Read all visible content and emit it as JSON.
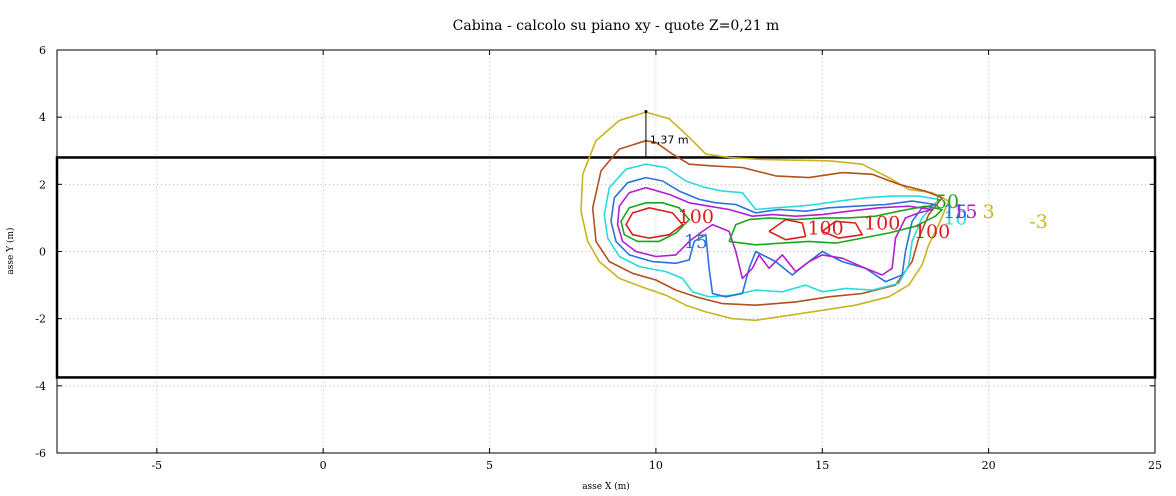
{
  "chart_data": {
    "type": "contour",
    "title": "Cabina  -  calcolo su piano xy  -  quote Z=0,21 m",
    "xlabel": "asse X (m)",
    "ylabel": "asse Y (m)",
    "xlim": [
      -8,
      25
    ],
    "ylim": [
      -6,
      6
    ],
    "xticks": [
      -5,
      0,
      5,
      10,
      15,
      20,
      25
    ],
    "yticks": [
      -6,
      -4,
      -2,
      0,
      2,
      4,
      6
    ],
    "grid": true,
    "colors": {
      "c3": "#c8b41e",
      "c5": "#b4501e",
      "c10": "#28dcdc",
      "c15": "#2a73dc",
      "c20": "#b41ed2",
      "c50": "#1ea51e",
      "c100": "#dc1e1e"
    },
    "cabin_rect": {
      "x": [
        -8,
        25
      ],
      "y": [
        -3.75,
        2.8
      ]
    },
    "annotation": {
      "text": "1,37 m",
      "x": 9.7,
      "y_from": 2.8,
      "y_to": 4.17
    },
    "contours": [
      {
        "level": "3",
        "color": "#c8b41e",
        "points": [
          [
            9.7,
            4.15
          ],
          [
            8.9,
            3.9
          ],
          [
            8.2,
            3.3
          ],
          [
            7.8,
            2.3
          ],
          [
            7.75,
            1.2
          ],
          [
            7.95,
            0.3
          ],
          [
            8.3,
            -0.3
          ],
          [
            8.9,
            -0.8
          ],
          [
            9.7,
            -1.1
          ],
          [
            10.3,
            -1.3
          ],
          [
            10.9,
            -1.6
          ],
          [
            11.5,
            -1.8
          ],
          [
            12.3,
            -2.0
          ],
          [
            13.0,
            -2.05
          ],
          [
            14.0,
            -1.9
          ],
          [
            15.0,
            -1.75
          ],
          [
            16.0,
            -1.6
          ],
          [
            17.0,
            -1.35
          ],
          [
            17.6,
            -1.0
          ],
          [
            18.0,
            -0.4
          ],
          [
            18.2,
            0.2
          ],
          [
            18.5,
            0.8
          ],
          [
            18.8,
            1.5
          ],
          [
            18.3,
            1.75
          ],
          [
            17.6,
            1.85
          ],
          [
            17.0,
            2.2
          ],
          [
            16.2,
            2.6
          ],
          [
            15.2,
            2.7
          ],
          [
            14.2,
            2.72
          ],
          [
            13.2,
            2.74
          ],
          [
            12.2,
            2.8
          ],
          [
            11.5,
            2.9
          ],
          [
            11.0,
            3.4
          ],
          [
            10.4,
            3.95
          ],
          [
            9.7,
            4.15
          ]
        ],
        "labels": [
          {
            "text": "3",
            "x": 20.0,
            "y": 1.0
          }
        ]
      },
      {
        "level": "3b",
        "color": "#c8b41e",
        "points": [],
        "labels": [
          {
            "text": "-3",
            "x": 21.5,
            "y": 0.7
          }
        ]
      },
      {
        "level": "5",
        "color": "#b4501e",
        "points": [
          [
            9.7,
            3.3
          ],
          [
            8.9,
            3.05
          ],
          [
            8.35,
            2.4
          ],
          [
            8.1,
            1.3
          ],
          [
            8.2,
            0.3
          ],
          [
            8.6,
            -0.3
          ],
          [
            9.3,
            -0.65
          ],
          [
            10.0,
            -0.85
          ],
          [
            10.6,
            -1.15
          ],
          [
            11.2,
            -1.35
          ],
          [
            12.0,
            -1.55
          ],
          [
            13.0,
            -1.6
          ],
          [
            14.2,
            -1.5
          ],
          [
            15.2,
            -1.35
          ],
          [
            16.2,
            -1.25
          ],
          [
            17.2,
            -1.0
          ],
          [
            17.7,
            -0.3
          ],
          [
            17.9,
            0.4
          ],
          [
            18.2,
            1.1
          ],
          [
            18.6,
            1.6
          ],
          [
            18.1,
            1.8
          ],
          [
            17.3,
            2.0
          ],
          [
            16.5,
            2.3
          ],
          [
            15.6,
            2.35
          ],
          [
            14.6,
            2.2
          ],
          [
            13.6,
            2.25
          ],
          [
            12.6,
            2.5
          ],
          [
            11.7,
            2.55
          ],
          [
            11.0,
            2.6
          ],
          [
            10.5,
            2.9
          ],
          [
            10.0,
            3.25
          ],
          [
            9.7,
            3.3
          ]
        ],
        "labels": []
      },
      {
        "level": "10",
        "color": "#28dcdc",
        "points": [
          [
            9.7,
            2.6
          ],
          [
            9.1,
            2.45
          ],
          [
            8.6,
            1.9
          ],
          [
            8.45,
            1.1
          ],
          [
            8.55,
            0.4
          ],
          [
            8.9,
            -0.15
          ],
          [
            9.5,
            -0.45
          ],
          [
            10.3,
            -0.6
          ],
          [
            10.8,
            -0.8
          ],
          [
            11.1,
            -1.2
          ],
          [
            11.6,
            -1.35
          ],
          [
            12.3,
            -1.3
          ],
          [
            13.0,
            -1.15
          ],
          [
            13.8,
            -1.2
          ],
          [
            14.5,
            -1.0
          ],
          [
            15.0,
            -1.2
          ],
          [
            15.7,
            -1.1
          ],
          [
            16.5,
            -1.15
          ],
          [
            17.3,
            -0.95
          ],
          [
            17.6,
            -0.4
          ],
          [
            17.7,
            0.3
          ],
          [
            18.0,
            1.0
          ],
          [
            18.5,
            1.55
          ],
          [
            17.9,
            1.65
          ],
          [
            17.1,
            1.65
          ],
          [
            16.3,
            1.6
          ],
          [
            15.5,
            1.5
          ],
          [
            14.8,
            1.4
          ],
          [
            14.3,
            1.35
          ],
          [
            13.6,
            1.3
          ],
          [
            13.0,
            1.25
          ],
          [
            12.6,
            1.75
          ],
          [
            12.0,
            1.8
          ],
          [
            11.5,
            1.9
          ],
          [
            10.9,
            2.1
          ],
          [
            10.3,
            2.5
          ],
          [
            9.7,
            2.6
          ]
        ],
        "labels": [
          {
            "text": "10",
            "x": 19.0,
            "y": 0.8
          }
        ]
      },
      {
        "level": "15",
        "color": "#2a73dc",
        "points": [
          [
            9.7,
            2.2
          ],
          [
            9.15,
            2.05
          ],
          [
            8.75,
            1.6
          ],
          [
            8.65,
            0.9
          ],
          [
            8.8,
            0.3
          ],
          [
            9.2,
            -0.1
          ],
          [
            9.9,
            -0.3
          ],
          [
            10.6,
            -0.35
          ],
          [
            11.0,
            -0.25
          ],
          [
            11.15,
            0.3
          ],
          [
            11.5,
            0.5
          ],
          [
            11.6,
            -0.5
          ],
          [
            11.7,
            -1.25
          ],
          [
            12.1,
            -1.35
          ],
          [
            12.6,
            -1.25
          ],
          [
            12.8,
            -0.5
          ],
          [
            13.0,
            0.0
          ],
          [
            13.6,
            -0.3
          ],
          [
            14.1,
            -0.7
          ],
          [
            14.6,
            -0.3
          ],
          [
            15.0,
            0.0
          ],
          [
            15.6,
            -0.3
          ],
          [
            16.3,
            -0.5
          ],
          [
            16.9,
            -0.9
          ],
          [
            17.4,
            -0.7
          ],
          [
            17.5,
            0.0
          ],
          [
            17.7,
            0.9
          ],
          [
            18.0,
            1.3
          ],
          [
            18.4,
            1.4
          ],
          [
            17.7,
            1.5
          ],
          [
            16.9,
            1.4
          ],
          [
            16.0,
            1.35
          ],
          [
            15.2,
            1.3
          ],
          [
            14.5,
            1.2
          ],
          [
            13.7,
            1.25
          ],
          [
            13.0,
            1.15
          ],
          [
            12.4,
            1.4
          ],
          [
            11.8,
            1.45
          ],
          [
            11.3,
            1.55
          ],
          [
            10.7,
            1.8
          ],
          [
            10.2,
            2.1
          ],
          [
            9.7,
            2.2
          ]
        ],
        "labels": [
          {
            "text": "15",
            "x": 19.0,
            "y": 1.0
          },
          {
            "text": "15",
            "x": 11.2,
            "y": 0.1
          }
        ]
      },
      {
        "level": "20",
        "color": "#b41ed2",
        "points": [
          [
            9.7,
            1.9
          ],
          [
            9.2,
            1.75
          ],
          [
            8.9,
            1.35
          ],
          [
            8.85,
            0.8
          ],
          [
            9.0,
            0.3
          ],
          [
            9.4,
            0.0
          ],
          [
            10.0,
            -0.15
          ],
          [
            10.6,
            -0.1
          ],
          [
            11.0,
            0.3
          ],
          [
            11.4,
            0.6
          ],
          [
            11.7,
            0.8
          ],
          [
            12.2,
            0.6
          ],
          [
            12.4,
            0.0
          ],
          [
            12.6,
            -0.8
          ],
          [
            12.9,
            -0.5
          ],
          [
            13.1,
            -0.1
          ],
          [
            13.4,
            -0.5
          ],
          [
            13.8,
            -0.1
          ],
          [
            14.2,
            -0.6
          ],
          [
            14.6,
            -0.3
          ],
          [
            15.0,
            -0.1
          ],
          [
            15.6,
            -0.2
          ],
          [
            16.3,
            -0.5
          ],
          [
            16.8,
            -0.7
          ],
          [
            17.1,
            -0.5
          ],
          [
            17.2,
            0.4
          ],
          [
            17.5,
            1.0
          ],
          [
            17.9,
            1.15
          ],
          [
            18.3,
            1.25
          ],
          [
            17.6,
            1.35
          ],
          [
            16.7,
            1.3
          ],
          [
            15.8,
            1.2
          ],
          [
            15.0,
            1.1
          ],
          [
            14.2,
            1.05
          ],
          [
            13.5,
            1.1
          ],
          [
            12.9,
            1.05
          ],
          [
            12.2,
            1.25
          ],
          [
            11.6,
            1.35
          ],
          [
            11.0,
            1.45
          ],
          [
            10.4,
            1.7
          ],
          [
            9.7,
            1.9
          ]
        ],
        "labels": [
          {
            "text": "15",
            "x": 19.3,
            "y": 1.0
          }
        ]
      },
      {
        "level": "50",
        "color": "#1ea51e",
        "points": [
          [
            9.7,
            1.45
          ],
          [
            9.2,
            1.3
          ],
          [
            8.95,
            0.9
          ],
          [
            9.05,
            0.5
          ],
          [
            9.45,
            0.3
          ],
          [
            10.1,
            0.3
          ],
          [
            10.6,
            0.55
          ],
          [
            11.0,
            0.95
          ],
          [
            10.7,
            1.3
          ],
          [
            10.2,
            1.45
          ],
          [
            9.7,
            1.45
          ]
        ],
        "labels": [
          {
            "text": "50",
            "x": 18.75,
            "y": 1.3
          }
        ]
      },
      {
        "level": "50b",
        "color": "#1ea51e",
        "points": [
          [
            12.2,
            0.3
          ],
          [
            13.0,
            0.2
          ],
          [
            13.8,
            0.25
          ],
          [
            14.6,
            0.3
          ],
          [
            15.4,
            0.25
          ],
          [
            16.2,
            0.4
          ],
          [
            17.0,
            0.55
          ],
          [
            17.8,
            0.75
          ],
          [
            18.4,
            1.05
          ],
          [
            18.6,
            1.25
          ],
          [
            18.1,
            1.35
          ],
          [
            17.3,
            1.2
          ],
          [
            16.6,
            1.05
          ],
          [
            15.8,
            1.0
          ],
          [
            15.0,
            1.0
          ],
          [
            14.2,
            0.95
          ],
          [
            13.4,
            1.0
          ],
          [
            12.8,
            0.95
          ],
          [
            12.4,
            0.8
          ],
          [
            12.2,
            0.3
          ]
        ],
        "labels": []
      },
      {
        "level": "100",
        "color": "#dc1e1e",
        "points": [
          [
            9.8,
            1.3
          ],
          [
            9.3,
            1.15
          ],
          [
            9.1,
            0.8
          ],
          [
            9.3,
            0.5
          ],
          [
            9.8,
            0.4
          ],
          [
            10.4,
            0.5
          ],
          [
            10.8,
            0.8
          ],
          [
            10.5,
            1.15
          ],
          [
            9.8,
            1.3
          ]
        ],
        "labels": [
          {
            "text": "100",
            "x": 11.2,
            "y": 0.85
          }
        ]
      },
      {
        "level": "100b",
        "color": "#dc1e1e",
        "points": [
          [
            13.4,
            0.6
          ],
          [
            13.9,
            0.35
          ],
          [
            14.5,
            0.45
          ],
          [
            14.4,
            0.85
          ],
          [
            13.9,
            0.95
          ],
          [
            13.4,
            0.6
          ]
        ],
        "labels": [
          {
            "text": "100",
            "x": 15.1,
            "y": 0.5
          }
        ]
      },
      {
        "level": "100c",
        "color": "#dc1e1e",
        "points": [
          [
            15.0,
            0.6
          ],
          [
            15.5,
            0.4
          ],
          [
            16.2,
            0.5
          ],
          [
            16.0,
            0.85
          ],
          [
            15.4,
            0.9
          ],
          [
            15.0,
            0.6
          ]
        ],
        "labels": [
          {
            "text": "100",
            "x": 16.8,
            "y": 0.65
          }
        ]
      },
      {
        "level": "100d",
        "color": "#dc1e1e",
        "points": [],
        "labels": [
          {
            "text": "100",
            "x": 18.3,
            "y": 0.4
          }
        ]
      }
    ]
  }
}
